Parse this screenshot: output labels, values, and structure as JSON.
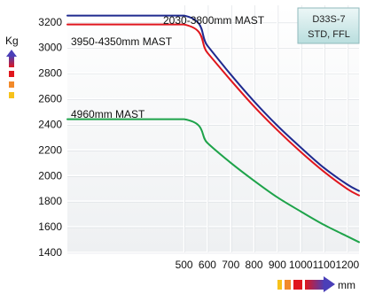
{
  "chart_data": {
    "type": "line",
    "ylabel": "Kg",
    "xlabel": "mm",
    "xlim": [
      0,
      1250
    ],
    "ylim": [
      1400,
      3330
    ],
    "x_ticks": [
      500,
      600,
      700,
      800,
      900,
      1000,
      1100,
      1200
    ],
    "y_ticks": [
      1400,
      1600,
      1800,
      2000,
      2200,
      2400,
      2600,
      2800,
      3000,
      3200
    ],
    "grid": true,
    "model_box": {
      "line1": "D33S-7",
      "line2": "STD, FFL"
    },
    "series": [
      {
        "name": "2030-3800mm MAST",
        "color": "#1f2a8f",
        "points": [
          [
            0,
            3250
          ],
          [
            500,
            3250
          ],
          [
            600,
            3015
          ],
          [
            700,
            2790
          ],
          [
            800,
            2580
          ],
          [
            900,
            2390
          ],
          [
            1000,
            2220
          ],
          [
            1100,
            2060
          ],
          [
            1200,
            1930
          ],
          [
            1250,
            1880
          ]
        ]
      },
      {
        "name": "3950-4350mm MAST",
        "color": "#e0161d",
        "points": [
          [
            0,
            3180
          ],
          [
            500,
            3180
          ],
          [
            600,
            2960
          ],
          [
            700,
            2745
          ],
          [
            800,
            2540
          ],
          [
            900,
            2355
          ],
          [
            1000,
            2185
          ],
          [
            1100,
            2030
          ],
          [
            1200,
            1895
          ],
          [
            1250,
            1845
          ]
        ]
      },
      {
        "name": "4960mm MAST",
        "color": "#1ea34a",
        "points": [
          [
            0,
            2440
          ],
          [
            500,
            2440
          ],
          [
            600,
            2255
          ],
          [
            700,
            2100
          ],
          [
            800,
            1960
          ],
          [
            900,
            1830
          ],
          [
            1000,
            1720
          ],
          [
            1100,
            1615
          ],
          [
            1200,
            1525
          ],
          [
            1250,
            1480
          ]
        ]
      }
    ]
  }
}
